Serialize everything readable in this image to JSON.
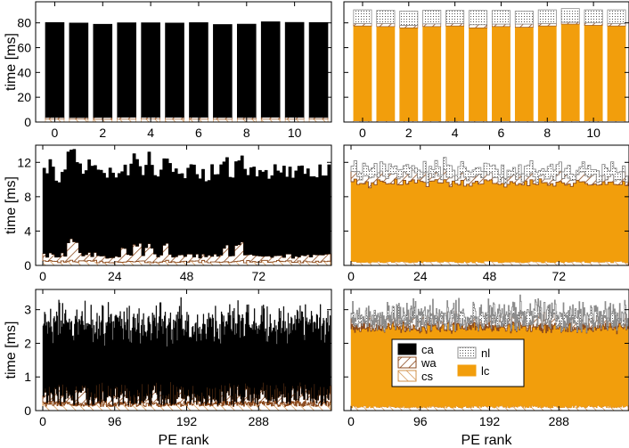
{
  "colors": {
    "ca": "#000000",
    "wa": "#8b4a1e",
    "cs": "#d2904a",
    "nl": "#8c8c8c",
    "lc": "#f29e0c"
  },
  "chart_data": [
    {
      "id": "p1",
      "type": "stacked-bar",
      "row": 1,
      "col": 1,
      "n_ranks": 12,
      "ylabel": "time [ms]",
      "xlabel": "",
      "ylim": [
        0,
        97
      ],
      "xlim": [
        -0.5,
        11.5
      ],
      "yticks": [
        "0",
        "20",
        "40",
        "60",
        "80"
      ],
      "ytick_values": [
        0,
        20,
        40,
        60,
        80
      ],
      "xticks": [
        "0",
        "2",
        "4",
        "6",
        "8",
        "10"
      ],
      "xtick_values": [
        0,
        2,
        4,
        6,
        8,
        10
      ],
      "series_order": [
        "cs",
        "wa",
        "ca"
      ],
      "series": {
        "cs": [
          2.3,
          2.3,
          2.2,
          2.3,
          2.4,
          2.3,
          2.3,
          2.2,
          2.3,
          2.3,
          2.3,
          2.3
        ],
        "wa": [
          1.4,
          1.3,
          1.5,
          1.6,
          1.4,
          1.5,
          1.5,
          1.5,
          1.4,
          1.6,
          1.5,
          1.4
        ],
        "ca": [
          76.6,
          76.3,
          75.2,
          76.2,
          76.3,
          76.1,
          76.4,
          75.0,
          75.3,
          77.0,
          76.6,
          76.6
        ]
      }
    },
    {
      "id": "p2",
      "type": "stacked-bar",
      "row": 1,
      "col": 2,
      "n_ranks": 12,
      "ylabel": "",
      "xlabel": "",
      "ylim": [
        0,
        97
      ],
      "xlim": [
        -0.5,
        11.5
      ],
      "yticks": [],
      "ytick_values": [
        0,
        20,
        40,
        60,
        80
      ],
      "xticks": [
        "0",
        "2",
        "4",
        "6",
        "8",
        "10"
      ],
      "xtick_values": [
        0,
        2,
        4,
        6,
        8,
        10
      ],
      "series_order": [
        "cs",
        "lc",
        "wa",
        "nl"
      ],
      "series": {
        "cs": [
          1.0,
          1.0,
          1.0,
          1.0,
          1.0,
          1.0,
          1.0,
          1.0,
          1.0,
          1.0,
          1.0,
          1.0
        ],
        "lc": [
          76.5,
          76.0,
          75.0,
          76.0,
          76.5,
          75.0,
          76.0,
          75.5,
          76.5,
          78.0,
          77.0,
          76.5
        ],
        "wa": [
          2.0,
          2.5,
          2.0,
          2.2,
          2.0,
          2.5,
          2.0,
          2.5,
          2.0,
          1.5,
          2.0,
          2.0
        ],
        "nl": [
          11.0,
          10.5,
          11.5,
          11.0,
          10.5,
          11.5,
          11.0,
          10.5,
          11.0,
          11.0,
          10.5,
          11.0
        ]
      }
    },
    {
      "id": "p3",
      "type": "stacked-step",
      "row": 2,
      "col": 1,
      "n_ranks": 96,
      "ylabel": "time [ms]",
      "xlabel": "",
      "ylim": [
        0,
        14
      ],
      "xlim": [
        0,
        96
      ],
      "yticks": [
        "0",
        "4",
        "8",
        "12"
      ],
      "ytick_values": [
        0,
        4,
        8,
        12
      ],
      "xticks": [
        "0",
        "24",
        "48",
        "72"
      ],
      "xtick_values": [
        0,
        24,
        48,
        72
      ],
      "series_order": [
        "cs",
        "wa",
        "ca"
      ],
      "base": {
        "cs": 0.45,
        "wa": 0.7,
        "ca": 9.8
      },
      "amp": {
        "cs": 0.15,
        "wa": 0.25,
        "ca": 0.9
      },
      "spikes": [
        {
          "from": 8,
          "to": 11,
          "series": "wa",
          "add": 1.6
        },
        {
          "from": 26,
          "to": 27,
          "series": "wa",
          "add": 1.1
        },
        {
          "from": 30,
          "to": 32,
          "series": "wa",
          "add": 1.2
        },
        {
          "from": 34,
          "to": 36,
          "series": "wa",
          "add": 1.2
        },
        {
          "from": 40,
          "to": 41,
          "series": "wa",
          "add": 1.2
        },
        {
          "from": 60,
          "to": 61,
          "series": "wa",
          "add": 1.1
        },
        {
          "from": 64,
          "to": 66,
          "series": "wa",
          "add": 1.3
        }
      ]
    },
    {
      "id": "p4",
      "type": "stacked-step",
      "row": 2,
      "col": 2,
      "n_ranks": 96,
      "ylabel": "",
      "xlabel": "",
      "ylim": [
        0,
        14
      ],
      "xlim": [
        0,
        96
      ],
      "yticks": [],
      "ytick_values": [
        0,
        4,
        8,
        12
      ],
      "xticks": [
        "0",
        "24",
        "48",
        "72"
      ],
      "xtick_values": [
        0,
        24,
        48,
        72
      ],
      "series_order": [
        "cs",
        "lc",
        "wa",
        "nl"
      ],
      "base": {
        "cs": 0.4,
        "lc": 9.2,
        "wa": 0.7,
        "nl": 1.0
      },
      "amp": {
        "cs": 0.1,
        "lc": 0.4,
        "wa": 0.5,
        "nl": 0.5
      },
      "spikes": []
    },
    {
      "id": "p5",
      "type": "stacked-step",
      "row": 3,
      "col": 1,
      "n_ranks": 384,
      "ylabel": "time [ms]",
      "xlabel": "PE rank",
      "ylim": [
        0,
        3.6
      ],
      "xlim": [
        0,
        384
      ],
      "yticks": [
        "0",
        "1",
        "2",
        "3"
      ],
      "ytick_values": [
        0,
        1,
        2,
        3
      ],
      "xticks": [
        "0",
        "96",
        "192",
        "288"
      ],
      "xtick_values": [
        0,
        96,
        192,
        288
      ],
      "series_order": [
        "cs",
        "wa",
        "ca"
      ],
      "base": {
        "cs": 0.2,
        "wa": 0.25,
        "ca": 2.15
      },
      "amp": {
        "cs": 0.08,
        "wa": 0.35,
        "ca": 0.4
      },
      "spikes": []
    },
    {
      "id": "p6",
      "type": "stacked-step",
      "row": 3,
      "col": 2,
      "n_ranks": 384,
      "ylabel": "",
      "xlabel": "PE rank",
      "ylim": [
        0,
        3.6
      ],
      "xlim": [
        0,
        384
      ],
      "yticks": [],
      "ytick_values": [
        0,
        1,
        2,
        3
      ],
      "xticks": [
        "0",
        "96",
        "192",
        "288"
      ],
      "xtick_values": [
        0,
        96,
        192,
        288
      ],
      "series_order": [
        "cs",
        "lc",
        "wa",
        "nl"
      ],
      "base": {
        "cs": 0.12,
        "lc": 2.35,
        "wa": 0.15,
        "nl": 0.25
      },
      "amp": {
        "cs": 0.04,
        "lc": 0.12,
        "wa": 0.25,
        "nl": 0.25
      },
      "spikes": []
    }
  ],
  "legend": [
    {
      "key": "ca",
      "label": "ca",
      "fill": "solid"
    },
    {
      "key": "nl",
      "label": "nl",
      "fill": "dots"
    },
    {
      "key": "wa",
      "label": "wa",
      "fill": "hatch"
    },
    {
      "key": "lc",
      "label": "lc",
      "fill": "solid"
    },
    {
      "key": "cs",
      "label": "cs",
      "fill": "hatch"
    }
  ]
}
